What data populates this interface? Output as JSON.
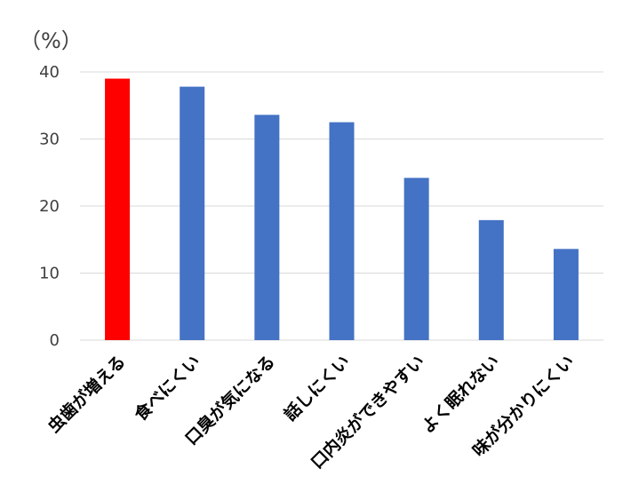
{
  "chart_data": {
    "type": "bar",
    "unit_label": "（%）",
    "categories": [
      "虫歯が増える",
      "食べにくい",
      "口臭が気になる",
      "話しにくい",
      "口内炎ができやすい",
      "よく眠れない",
      "味が分かりにくい"
    ],
    "values": [
      39,
      37.8,
      33.6,
      32.5,
      24.2,
      17.9,
      13.6
    ],
    "bar_colors": [
      "#ff0000",
      "#4472c4",
      "#4472c4",
      "#4472c4",
      "#4472c4",
      "#4472c4",
      "#4472c4"
    ],
    "ylim": [
      0,
      40
    ],
    "yticks": [
      "0",
      "10",
      "20",
      "30",
      "40"
    ],
    "grid": true,
    "legend": "none"
  }
}
